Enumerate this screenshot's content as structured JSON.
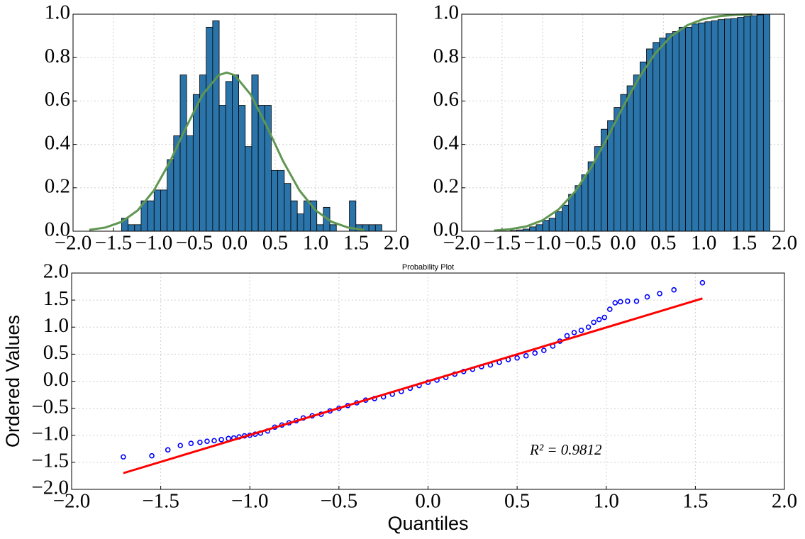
{
  "chart_data": [
    {
      "type": "histogram",
      "color": "#2a74aa",
      "bins": [
        -1.4,
        -1.3195,
        -1.239,
        -1.1585,
        -1.078,
        -0.9975,
        -0.917,
        -0.8365,
        -0.756,
        -0.6755,
        -0.595,
        -0.5145,
        -0.434,
        -0.3535,
        -0.273,
        -0.1925,
        -0.112,
        -0.0315,
        0.049,
        0.1295,
        0.21,
        0.2905,
        0.371,
        0.4515,
        0.532,
        0.6125,
        0.693,
        0.7735,
        0.854,
        0.9345,
        1.015,
        1.0955,
        1.176,
        1.2565,
        1.337,
        1.4175,
        1.498,
        1.5785,
        1.659,
        1.7395,
        1.82
      ],
      "values": [
        0.06,
        0.03,
        0.03,
        0.14,
        0.14,
        0.19,
        0.19,
        0.33,
        0.44,
        0.72,
        0.44,
        0.63,
        0.72,
        0.94,
        0.97,
        0.58,
        0.69,
        0.72,
        0.58,
        0.39,
        0.72,
        0.58,
        0.58,
        0.28,
        0.28,
        0.22,
        0.14,
        0.08,
        0.14,
        0.14,
        0.03,
        0.11,
        0.03,
        0,
        0,
        0.14,
        0.03,
        0.03,
        0.03,
        0.03
      ],
      "lines": [
        {
          "color": "#5f9650",
          "x": [
            -1.8,
            -1.6,
            -1.4,
            -1.2,
            -1.0,
            -0.8,
            -0.6,
            -0.4,
            -0.2,
            -0.1,
            0.0,
            0.2,
            0.4,
            0.6,
            0.8,
            1.0,
            1.2,
            1.4,
            1.6
          ],
          "values": [
            0.006,
            0.017,
            0.043,
            0.096,
            0.188,
            0.321,
            0.48,
            0.628,
            0.719,
            0.731,
            0.719,
            0.628,
            0.48,
            0.321,
            0.188,
            0.096,
            0.043,
            0.017,
            0.006
          ]
        }
      ],
      "xlim": [
        -2,
        2
      ],
      "ylim": [
        0,
        1
      ],
      "xticks": [
        {
          "value": -2,
          "label": "−2.0"
        },
        {
          "value": -1.5,
          "label": "−1.5"
        },
        {
          "value": -1,
          "label": "−1.0"
        },
        {
          "value": -0.5,
          "label": "−0.5"
        },
        {
          "value": 0,
          "label": "0.0"
        },
        0.5,
        {
          "value": 1,
          "label": "1.0"
        },
        1.5,
        {
          "value": 2,
          "label": "2.0"
        }
      ],
      "yticks": [
        {
          "value": 0,
          "label": "0.0"
        },
        0.2,
        0.4,
        0.6,
        0.8,
        {
          "value": 1,
          "label": "1.0"
        }
      ],
      "grid": true
    },
    {
      "type": "histogram",
      "color": "#2a74aa",
      "bins": [
        -1.4,
        -1.3195,
        -1.239,
        -1.1585,
        -1.078,
        -0.9975,
        -0.917,
        -0.8365,
        -0.756,
        -0.6755,
        -0.595,
        -0.5145,
        -0.434,
        -0.3535,
        -0.273,
        -0.1925,
        -0.112,
        -0.0315,
        0.049,
        0.1295,
        0.21,
        0.2905,
        0.371,
        0.4515,
        0.532,
        0.6125,
        0.693,
        0.7735,
        0.854,
        0.9345,
        1.015,
        1.0955,
        1.176,
        1.2565,
        1.337,
        1.4175,
        1.498,
        1.5785,
        1.659,
        1.7395,
        1.82
      ],
      "values": [
        0.003,
        0.006,
        0.01,
        0.02,
        0.03,
        0.05,
        0.06,
        0.09,
        0.12,
        0.17,
        0.21,
        0.26,
        0.32,
        0.39,
        0.47,
        0.51,
        0.57,
        0.63,
        0.67,
        0.72,
        0.78,
        0.84,
        0.87,
        0.89,
        0.91,
        0.92,
        0.94,
        0.94,
        0.955,
        0.96,
        0.965,
        0.97,
        0.975,
        0.978,
        0.98,
        0.985,
        0.99,
        0.993,
        0.997,
        1.0
      ],
      "lines": [
        {
          "color": "#5f9650",
          "x": [
            -1.6,
            -1.4,
            -1.2,
            -1.0,
            -0.8,
            -0.6,
            -0.4,
            -0.2,
            0.0,
            0.2,
            0.4,
            0.6,
            0.8,
            1.0,
            1.2,
            1.4,
            1.6
          ],
          "values": [
            0.003,
            0.009,
            0.022,
            0.05,
            0.1,
            0.18,
            0.291,
            0.427,
            0.573,
            0.709,
            0.82,
            0.9,
            0.95,
            0.978,
            0.991,
            0.997,
            0.999
          ]
        }
      ],
      "xlim": [
        -2,
        2
      ],
      "ylim": [
        0,
        1
      ],
      "xticks": [
        {
          "value": -2,
          "label": "−2.0"
        },
        {
          "value": -1.5,
          "label": "−1.5"
        },
        {
          "value": -1,
          "label": "−1.0"
        },
        {
          "value": -0.5,
          "label": "−0.5"
        },
        {
          "value": 0,
          "label": "0.0"
        },
        0.5,
        {
          "value": 1,
          "label": "1.0"
        },
        1.5,
        {
          "value": 2,
          "label": "2.0"
        }
      ],
      "yticks": [
        {
          "value": 0,
          "label": "0.0"
        },
        0.2,
        0.4,
        0.6,
        0.8,
        {
          "value": 1,
          "label": "1.0"
        }
      ],
      "grid": true
    },
    {
      "type": "scatter",
      "title": "Probability Plot",
      "x_label": "Quantiles",
      "y_label": "Ordered Values",
      "annotation": "R² = 0.9812",
      "series": [
        {
          "type": "scatter",
          "color": "#0000ff",
          "x": [
            -1.71,
            -1.55,
            -1.46,
            -1.39,
            -1.33,
            -1.28,
            -1.24,
            -1.2,
            -1.16,
            -1.12,
            -1.09,
            -1.06,
            -1.03,
            -1.0,
            -0.97,
            -0.94,
            -0.9,
            -0.86,
            -0.82,
            -0.78,
            -0.74,
            -0.7,
            -0.65,
            -0.6,
            -0.55,
            -0.5,
            -0.45,
            -0.4,
            -0.35,
            -0.3,
            -0.25,
            -0.2,
            -0.15,
            -0.1,
            -0.05,
            0.0,
            0.05,
            0.1,
            0.15,
            0.2,
            0.25,
            0.3,
            0.35,
            0.4,
            0.45,
            0.5,
            0.55,
            0.6,
            0.65,
            0.7,
            0.74,
            0.78,
            0.82,
            0.86,
            0.9,
            0.93,
            0.96,
            0.99,
            1.02,
            1.05,
            1.08,
            1.12,
            1.17,
            1.23,
            1.3,
            1.38,
            1.54
          ],
          "values": [
            -1.4,
            -1.38,
            -1.27,
            -1.19,
            -1.15,
            -1.13,
            -1.11,
            -1.1,
            -1.08,
            -1.06,
            -1.05,
            -1.03,
            -1.01,
            -1.0,
            -0.98,
            -0.96,
            -0.92,
            -0.85,
            -0.81,
            -0.77,
            -0.73,
            -0.68,
            -0.64,
            -0.61,
            -0.55,
            -0.5,
            -0.45,
            -0.4,
            -0.35,
            -0.32,
            -0.29,
            -0.24,
            -0.19,
            -0.13,
            -0.08,
            -0.02,
            0.02,
            0.07,
            0.13,
            0.18,
            0.22,
            0.27,
            0.3,
            0.35,
            0.4,
            0.43,
            0.47,
            0.52,
            0.57,
            0.65,
            0.74,
            0.84,
            0.9,
            0.94,
            1.0,
            1.09,
            1.14,
            1.18,
            1.33,
            1.45,
            1.47,
            1.48,
            1.48,
            1.56,
            1.62,
            1.69,
            1.82
          ]
        },
        {
          "type": "line",
          "color": "#ff0000",
          "x": [
            -1.71,
            1.54
          ],
          "values": [
            -1.7,
            1.53
          ]
        }
      ],
      "xlim": [
        -2,
        2
      ],
      "ylim": [
        -2,
        2
      ],
      "xticks": [
        {
          "value": -2,
          "label": "−2.0"
        },
        {
          "value": -1.5,
          "label": "−1.5"
        },
        {
          "value": -1,
          "label": "−1.0"
        },
        {
          "value": -0.5,
          "label": "−0.5"
        },
        {
          "value": 0,
          "label": "0.0"
        },
        0.5,
        {
          "value": 1,
          "label": "1.0"
        },
        1.5,
        {
          "value": 2,
          "label": "2.0"
        }
      ],
      "yticks": [
        {
          "value": -2,
          "label": "−2.0"
        },
        {
          "value": -1.5,
          "label": "−1.5"
        },
        {
          "value": -1,
          "label": "−1.0"
        },
        {
          "value": -0.5,
          "label": "−0.5"
        },
        {
          "value": 0,
          "label": "0.0"
        },
        0.5,
        {
          "value": 1,
          "label": "1.0"
        },
        1.5,
        {
          "value": 2,
          "label": "2.0"
        }
      ],
      "grid": true
    }
  ]
}
